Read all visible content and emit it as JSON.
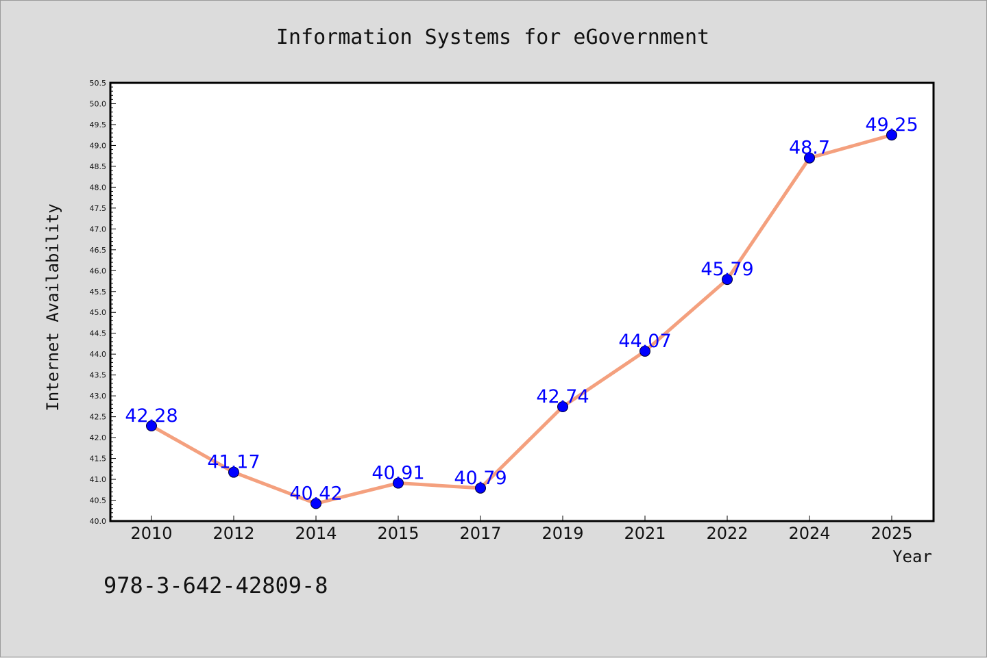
{
  "chart_data": {
    "type": "line",
    "title": "Information Systems for eGovernment",
    "xlabel": "Year",
    "ylabel": "Internet Availability",
    "categories": [
      "2010",
      "2012",
      "2014",
      "2015",
      "2017",
      "2019",
      "2021",
      "2022",
      "2024",
      "2025"
    ],
    "values": [
      42.28,
      41.17,
      40.42,
      40.91,
      40.79,
      42.74,
      44.07,
      45.79,
      48.7,
      49.25
    ],
    "data_labels": [
      "42.28",
      "41.17",
      "40.42",
      "40.91",
      "40.79",
      "42.74",
      "44.07",
      "45.79",
      "48.7",
      "49.25"
    ],
    "ylim": [
      40.0,
      50.5
    ],
    "yticks": [
      "40.0",
      "40.5",
      "41.0",
      "41.5",
      "42.0",
      "42.5",
      "43.0",
      "43.5",
      "44.0",
      "44.5",
      "45.0",
      "45.5",
      "46.0",
      "46.5",
      "47.0",
      "47.5",
      "48.0",
      "48.5",
      "49.0",
      "49.5",
      "50.0",
      "50.5"
    ],
    "grid": false,
    "line_color": "#f4a07e",
    "marker_color": "#0000ff",
    "label_color": "#0000ff"
  },
  "footnote": "978-3-642-42809-8"
}
